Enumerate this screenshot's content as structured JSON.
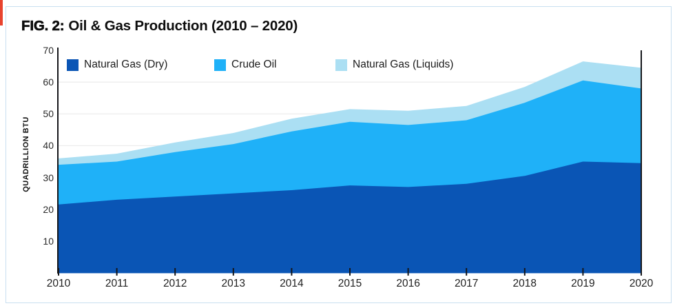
{
  "accent": {
    "color": "#e8432e"
  },
  "card": {
    "border_color": "#c9dff0"
  },
  "figure": {
    "label": "FIG. 2:",
    "title": "Oil & Gas Production (2010 – 2020)"
  },
  "chart_data": {
    "type": "area",
    "stacked": true,
    "title": "FIG. 2: Oil & Gas Production (2010 – 2020)",
    "x": [
      2010,
      2011,
      2012,
      2013,
      2014,
      2015,
      2016,
      2017,
      2018,
      2019,
      2020
    ],
    "series": [
      {
        "name": "Natural Gas (Dry)",
        "color": "#0a55b5",
        "values": [
          21.5,
          23,
          24,
          25,
          26,
          27.5,
          27,
          28,
          30.5,
          35,
          34.5
        ]
      },
      {
        "name": "Crude Oil",
        "color": "#1fb1f8",
        "values": [
          12.5,
          12,
          14,
          15.5,
          18.5,
          20,
          19.5,
          20,
          23,
          25.5,
          23.5
        ]
      },
      {
        "name": "Natural Gas (Liquids)",
        "color": "#abdff3",
        "values": [
          2,
          2.5,
          3,
          3.5,
          4,
          4,
          4.5,
          4.5,
          5,
          6,
          6.5
        ]
      }
    ],
    "stacked_totals": [
      36,
      37.5,
      41,
      44,
      48.5,
      51.5,
      51,
      52.5,
      58.5,
      66.5,
      64.5
    ],
    "ylabel": "QUADRILLION BTU",
    "xlabel": "",
    "ylim": [
      0,
      70
    ],
    "yticks": [
      10,
      20,
      30,
      40,
      50,
      60,
      70
    ],
    "grid": "horizontal",
    "legend_position": "top-left-inside",
    "axis_color": "#15161a",
    "grid_color": "#e8e8e8"
  }
}
